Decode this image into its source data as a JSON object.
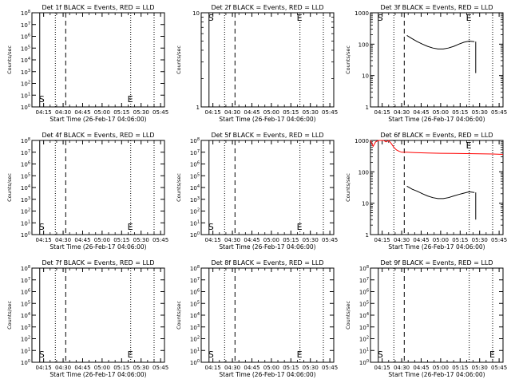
{
  "figure": {
    "xlabel": "Start Time (26-Feb-17 04:06:00)",
    "ylabel": "Counts/sec",
    "x_ticks": [
      "04:15",
      "04:30",
      "04:45",
      "05:00",
      "05:15",
      "05:30",
      "05:45"
    ],
    "marker_s": "S",
    "marker_e": "E"
  },
  "chart_data": [
    {
      "type": "line",
      "title": "Det 1f BLACK = Events, RED = LLD",
      "xlim": [
        "04:06",
        "05:48"
      ],
      "yscale": "log",
      "ylim": [
        1,
        100000000
      ],
      "y_ticks": [
        "10^0",
        "10^1",
        "10^2",
        "10^3",
        "10^4",
        "10^5",
        "10^6",
        "10^7",
        "10^8"
      ],
      "start_line": "04:12",
      "dotted_lines": [
        "04:24",
        "05:22",
        "05:40"
      ],
      "dashed_line": "04:32",
      "show_s": true,
      "e_line": "05:22",
      "series": []
    },
    {
      "type": "line",
      "title": "Det 2f BLACK = Events, RED = LLD",
      "xlim": [
        "04:06",
        "05:48"
      ],
      "yscale": "log",
      "ylim": [
        1,
        10
      ],
      "y_ticks": [
        "1",
        "10"
      ],
      "start_line": "04:12",
      "dotted_lines": [
        "04:24",
        "05:22",
        "05:40"
      ],
      "dashed_line": "04:32",
      "show_s": true,
      "e_line": "05:22",
      "series": []
    },
    {
      "type": "line",
      "title": "Det 3f BLACK = Events, RED = LLD",
      "xlim": [
        "04:06",
        "05:48"
      ],
      "yscale": "log",
      "ylim": [
        1,
        1000
      ],
      "y_ticks": [
        "1",
        "10",
        "100",
        "1000"
      ],
      "start_line": "04:12",
      "dotted_lines": [
        "04:24",
        "05:22",
        "05:40"
      ],
      "dashed_line": "04:32",
      "show_s": true,
      "e_line": "05:22",
      "series": [
        {
          "color": "#000000",
          "x": [
            "04:34",
            "04:38",
            "04:42",
            "04:46",
            "04:50",
            "04:54",
            "04:58",
            "05:02",
            "05:06",
            "05:10",
            "05:14",
            "05:18",
            "05:22",
            "05:26"
          ],
          "y": [
            190,
            150,
            120,
            100,
            85,
            75,
            70,
            70,
            75,
            85,
            100,
            115,
            125,
            120
          ]
        },
        {
          "color": "#000000",
          "x": [
            "05:27",
            "05:27"
          ],
          "y": [
            120,
            12
          ]
        }
      ]
    },
    {
      "type": "line",
      "title": "Det 4f BLACK = Events, RED = LLD",
      "xlim": [
        "04:06",
        "05:48"
      ],
      "yscale": "log",
      "ylim": [
        1,
        100000000
      ],
      "y_ticks": [
        "10^0",
        "10^1",
        "10^2",
        "10^3",
        "10^4",
        "10^5",
        "10^6",
        "10^7",
        "10^8"
      ],
      "start_line": "04:12",
      "dotted_lines": [
        "04:24",
        "05:22",
        "05:40"
      ],
      "dashed_line": "04:32",
      "show_s": true,
      "e_line": "05:22",
      "series": []
    },
    {
      "type": "line",
      "title": "Det 5f BLACK = Events, RED = LLD",
      "xlim": [
        "04:06",
        "05:48"
      ],
      "yscale": "log",
      "ylim": [
        1,
        100000000
      ],
      "y_ticks": [
        "10^0",
        "10^1",
        "10^2",
        "10^3",
        "10^4",
        "10^5",
        "10^6",
        "10^7",
        "10^8"
      ],
      "start_line": "04:12",
      "dotted_lines": [
        "04:24",
        "05:22",
        "05:40"
      ],
      "dashed_line": "04:32",
      "show_s": true,
      "e_line": "05:22",
      "series": []
    },
    {
      "type": "line",
      "title": "Det 6f BLACK = Events, RED = LLD",
      "xlim": [
        "04:06",
        "05:48"
      ],
      "yscale": "log",
      "ylim": [
        1,
        1000
      ],
      "y_ticks": [
        "1",
        "10",
        "100",
        "1000"
      ],
      "start_line": "04:12",
      "dotted_lines": [
        "04:24",
        "05:22",
        "05:40"
      ],
      "dashed_line": "04:32",
      "show_s": false,
      "e_line": "05:22",
      "series": [
        {
          "color": "#ff0000",
          "x": [
            "04:06",
            "04:08",
            "04:10",
            "04:12",
            "04:14",
            "04:16",
            "04:18",
            "04:20",
            "04:22",
            "04:24",
            "04:26",
            "04:28",
            "04:30",
            "04:34",
            "04:40",
            "04:50",
            "05:00",
            "05:10",
            "05:20",
            "05:30",
            "05:40",
            "05:48"
          ],
          "y": [
            1000,
            650,
            900,
            1000,
            1000,
            1000,
            900,
            1000,
            800,
            600,
            500,
            450,
            420,
            420,
            410,
            400,
            390,
            385,
            380,
            375,
            370,
            360
          ]
        },
        {
          "color": "#000000",
          "x": [
            "04:34",
            "04:38",
            "04:42",
            "04:46",
            "04:50",
            "04:54",
            "04:58",
            "05:02",
            "05:06",
            "05:10",
            "05:14",
            "05:18",
            "05:22",
            "05:26"
          ],
          "y": [
            35,
            28,
            24,
            20,
            17,
            15,
            14,
            14,
            15,
            17,
            19,
            21,
            23,
            22
          ]
        },
        {
          "color": "#000000",
          "x": [
            "05:27",
            "05:27"
          ],
          "y": [
            22,
            3
          ]
        }
      ]
    },
    {
      "type": "line",
      "title": "Det 7f BLACK = Events, RED = LLD",
      "xlim": [
        "04:06",
        "05:48"
      ],
      "yscale": "log",
      "ylim": [
        1,
        100000000
      ],
      "y_ticks": [
        "10^0",
        "10^1",
        "10^2",
        "10^3",
        "10^4",
        "10^5",
        "10^6",
        "10^7",
        "10^8"
      ],
      "start_line": "04:12",
      "dotted_lines": [
        "04:24",
        "05:22",
        "05:40"
      ],
      "dashed_line": "04:32",
      "show_s": true,
      "e_line": "05:22",
      "series": []
    },
    {
      "type": "line",
      "title": "Det 8f BLACK = Events, RED = LLD",
      "xlim": [
        "04:06",
        "05:48"
      ],
      "yscale": "log",
      "ylim": [
        1,
        100000000
      ],
      "y_ticks": [
        "10^0",
        "10^1",
        "10^2",
        "10^3",
        "10^4",
        "10^5",
        "10^6",
        "10^7",
        "10^8"
      ],
      "start_line": "04:12",
      "dotted_lines": [
        "04:24",
        "05:22",
        "05:40"
      ],
      "dashed_line": "04:32",
      "show_s": true,
      "e_line": "05:22",
      "series": []
    },
    {
      "type": "line",
      "title": "Det 9f BLACK = Events, RED = LLD",
      "xlim": [
        "04:06",
        "05:48"
      ],
      "yscale": "log",
      "ylim": [
        1,
        100000000
      ],
      "y_ticks": [
        "10^0",
        "10^1",
        "10^2",
        "10^3",
        "10^4",
        "10^5",
        "10^6",
        "10^7",
        "10^8"
      ],
      "start_line": "04:12",
      "dotted_lines": [
        "04:24",
        "05:22",
        "05:40"
      ],
      "dashed_line": "04:32",
      "show_s": true,
      "e_line": "05:40",
      "series": []
    }
  ]
}
